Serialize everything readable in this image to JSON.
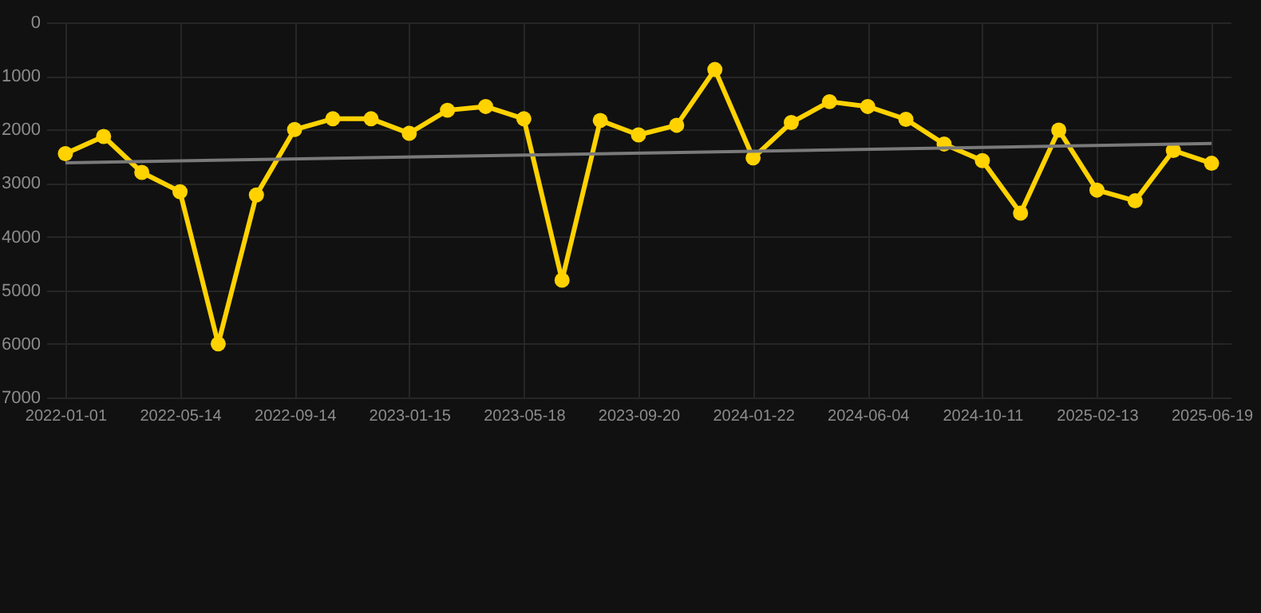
{
  "chart_data": {
    "type": "line",
    "categories": [
      "2022-01-01",
      null,
      null,
      "2022-05-14",
      null,
      null,
      "2022-09-14",
      null,
      null,
      "2023-01-15",
      null,
      null,
      "2023-05-18",
      null,
      null,
      "2023-09-20",
      null,
      null,
      "2024-01-22",
      null,
      null,
      "2024-06-04",
      null,
      null,
      "2024-10-11",
      null,
      null,
      "2025-02-13",
      null,
      null,
      "2025-06-19"
    ],
    "series": [
      {
        "color": "#ffd200",
        "marker": "circle",
        "values": [
          2450,
          2130,
          2800,
          3160,
          6000,
          3220,
          2000,
          1800,
          1800,
          2070,
          1640,
          1570,
          1800,
          4810,
          1830,
          2100,
          1920,
          880,
          2530,
          1870,
          1480,
          1570,
          1810,
          2270,
          2580,
          3560,
          2010,
          3130,
          3330,
          2390,
          2630
        ]
      },
      {
        "type": "line",
        "color": "#7a7a7a",
        "marker": "none",
        "values": [
          2620,
          null,
          null,
          null,
          null,
          null,
          null,
          null,
          null,
          null,
          null,
          null,
          null,
          null,
          null,
          null,
          null,
          null,
          null,
          null,
          null,
          null,
          null,
          null,
          null,
          null,
          null,
          null,
          null,
          null,
          2260
        ]
      }
    ],
    "ylim": [
      7000,
      0
    ],
    "yticks": [
      0,
      1000,
      2000,
      3000,
      4000,
      5000,
      6000,
      7000
    ],
    "grid": true
  }
}
